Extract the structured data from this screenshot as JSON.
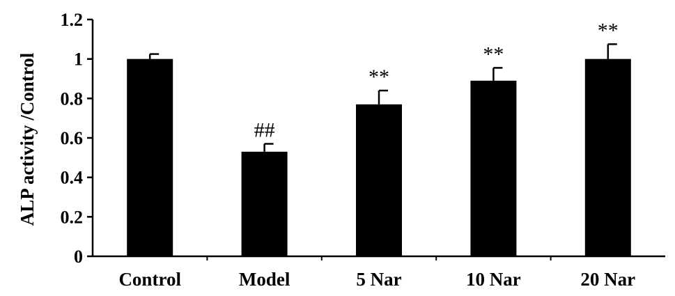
{
  "chart_data": {
    "type": "bar",
    "title": "",
    "xlabel": "",
    "ylabel": "ALP activity /Control",
    "ylim": [
      0,
      1.2
    ],
    "yticks": [
      "0",
      "0.2",
      "0.4",
      "0.6",
      "0.8",
      "1",
      "1.2"
    ],
    "categories": [
      "Control",
      "Model",
      "5 Nar",
      "10 Nar",
      "20 Nar"
    ],
    "values": [
      1.0,
      0.53,
      0.77,
      0.89,
      1.0
    ],
    "errors": [
      0.025,
      0.04,
      0.07,
      0.065,
      0.075
    ],
    "annotations": [
      "",
      "##",
      "**",
      "**",
      "**"
    ],
    "bar_color": "#000000",
    "grid": false,
    "legend": "none"
  }
}
